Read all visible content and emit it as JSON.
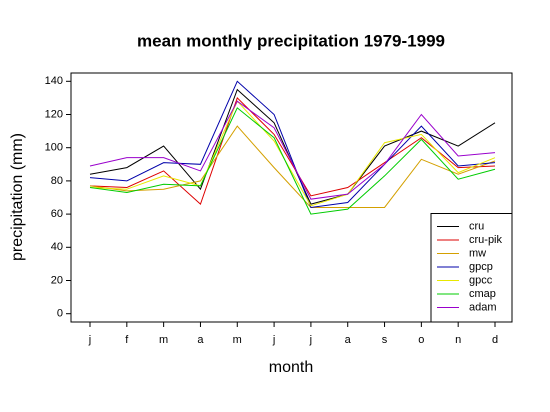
{
  "chart_data": {
    "type": "line",
    "title": "mean monthly precipitation 1979-1999",
    "x_label": "month",
    "y_label": "precipitation (mm)",
    "categories": [
      "j",
      "f",
      "m",
      "a",
      "m",
      "j",
      "j",
      "a",
      "s",
      "o",
      "n",
      "d"
    ],
    "series": [
      {
        "name": "cru",
        "color": "#000000",
        "values": [
          84,
          88,
          101,
          75,
          135,
          115,
          66,
          72,
          101,
          110,
          101,
          115
        ]
      },
      {
        "name": "cru-pik",
        "color": "#dd0000",
        "values": [
          77,
          76,
          86,
          66,
          130,
          108,
          71,
          76,
          91,
          106,
          88,
          89
        ]
      },
      {
        "name": "mw",
        "color": "#d4a000",
        "values": [
          77,
          74,
          75,
          80,
          113,
          88,
          64,
          64,
          64,
          93,
          84,
          92
        ]
      },
      {
        "name": "gpcp",
        "color": "#0000aa",
        "values": [
          82,
          80,
          91,
          90,
          140,
          120,
          64,
          67,
          90,
          113,
          89,
          91
        ]
      },
      {
        "name": "gpcc",
        "color": "#e8e800",
        "values": [
          76,
          75,
          83,
          77,
          128,
          104,
          65,
          72,
          103,
          108,
          85,
          94
        ]
      },
      {
        "name": "cmap",
        "color": "#00cc00",
        "values": [
          76,
          73,
          78,
          77,
          124,
          106,
          60,
          63,
          83,
          105,
          81,
          87
        ]
      },
      {
        "name": "adam",
        "color": "#9900cc",
        "values": [
          89,
          94,
          94,
          86,
          128,
          112,
          69,
          72,
          90,
          120,
          95,
          97
        ]
      }
    ],
    "ylim": [
      -5,
      145
    ],
    "yticks": [
      0,
      20,
      40,
      60,
      80,
      100,
      120,
      140
    ],
    "grid": false,
    "legend": "bottom-right"
  }
}
